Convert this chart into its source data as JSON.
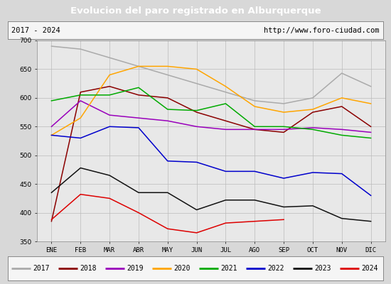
{
  "title": "Evolucion del paro registrado en Alburquerque",
  "subtitle_left": "2017 - 2024",
  "subtitle_right": "http://www.foro-ciudad.com",
  "months": [
    "ENE",
    "FEB",
    "MAR",
    "ABR",
    "MAY",
    "JUN",
    "JUL",
    "AGO",
    "SEP",
    "OCT",
    "NOV",
    "DIC"
  ],
  "ylim": [
    350,
    700
  ],
  "yticks": [
    350,
    400,
    450,
    500,
    550,
    600,
    650,
    700
  ],
  "series": {
    "2017": {
      "color": "#aaaaaa",
      "values": [
        690,
        685,
        670,
        655,
        640,
        625,
        610,
        595,
        590,
        600,
        643,
        620
      ]
    },
    "2018": {
      "color": "#8b0000",
      "values": [
        385,
        610,
        620,
        605,
        600,
        575,
        560,
        545,
        540,
        575,
        585,
        550
      ]
    },
    "2019": {
      "color": "#9900bb",
      "values": [
        550,
        595,
        570,
        565,
        560,
        550,
        545,
        545,
        545,
        548,
        545,
        540
      ]
    },
    "2020": {
      "color": "#ffa500",
      "values": [
        535,
        565,
        640,
        655,
        655,
        650,
        620,
        585,
        575,
        580,
        600,
        590
      ]
    },
    "2021": {
      "color": "#00aa00",
      "values": [
        595,
        605,
        605,
        618,
        580,
        578,
        590,
        550,
        550,
        545,
        535,
        530
      ]
    },
    "2022": {
      "color": "#0000cc",
      "values": [
        535,
        530,
        550,
        548,
        490,
        488,
        472,
        472,
        460,
        470,
        468,
        430
      ]
    },
    "2023": {
      "color": "#111111",
      "values": [
        435,
        478,
        465,
        435,
        435,
        405,
        422,
        422,
        410,
        412,
        390,
        385
      ]
    },
    "2024": {
      "color": "#dd0000",
      "values": [
        388,
        432,
        425,
        400,
        372,
        365,
        382,
        385,
        388,
        null,
        null,
        null
      ]
    }
  },
  "background_color": "#d8d8d8",
  "plot_background": "#e8e8e8",
  "title_bg": "#4477cc",
  "title_color": "#ffffff",
  "header_bg": "#f5f5f5",
  "grid_color": "#bbbbbb",
  "legend_items": [
    "2017",
    "2018",
    "2019",
    "2020",
    "2021",
    "2022",
    "2023",
    "2024"
  ],
  "legend_colors": [
    "#aaaaaa",
    "#8b0000",
    "#9900bb",
    "#ffa500",
    "#00aa00",
    "#0000cc",
    "#111111",
    "#dd0000"
  ]
}
